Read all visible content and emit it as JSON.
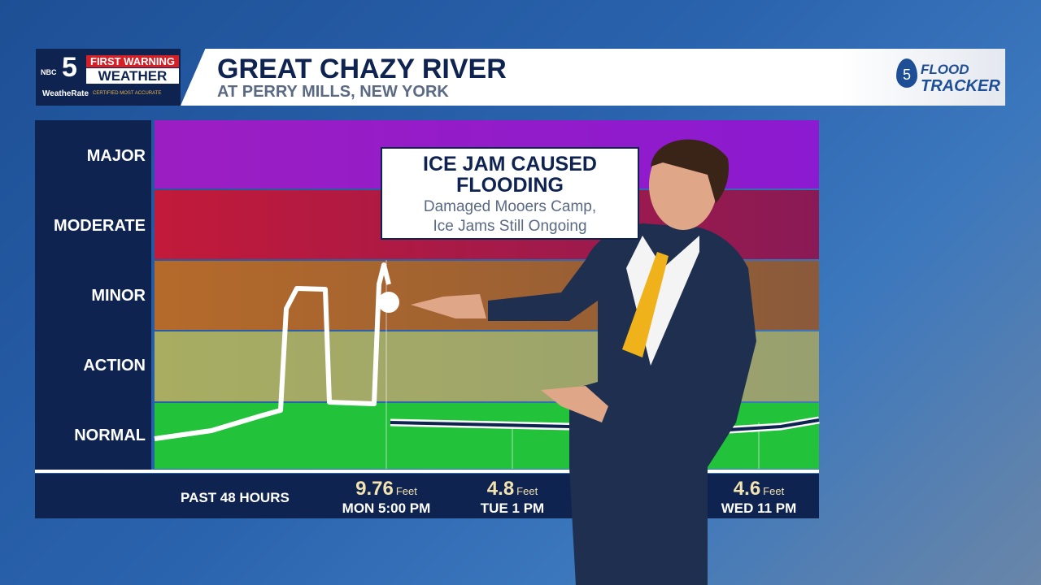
{
  "header": {
    "logo": {
      "network": "NBC",
      "channel": "5",
      "badge": "FIRST WARNING",
      "brand": "WEATHER",
      "sub": "WeatheRate",
      "tagline": "CERTIFIED MOST ACCURATE"
    },
    "title": "GREAT CHAZY RIVER",
    "subtitle": "AT PERRY MILLS, NEW YORK",
    "tracker": {
      "badge": "5",
      "top": "FLOOD",
      "bottom": "TRACKER"
    }
  },
  "stages": [
    "MAJOR",
    "MODERATE",
    "MINOR",
    "ACTION",
    "NORMAL"
  ],
  "callout": {
    "title_lines": [
      "ICE JAM CAUSED",
      "FLOODING"
    ],
    "text_lines": [
      "Damaged Mooers Camp,",
      "Ice Jams Still Ongoing"
    ]
  },
  "footer": {
    "label": "PAST 48 HOURS",
    "readings": [
      {
        "value": "9.76",
        "unit": "Feet",
        "time": "MON 5:00 PM"
      },
      {
        "value": "4.8",
        "unit": "Feet",
        "time": "TUE 1 PM"
      },
      {
        "value": "4.6",
        "unit": "Feet",
        "time": "WED 11 PM"
      }
    ]
  }
}
